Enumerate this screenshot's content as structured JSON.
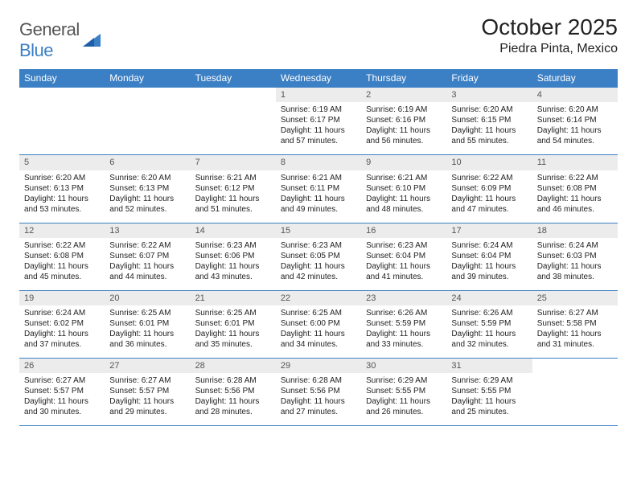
{
  "logo": {
    "text_a": "General",
    "text_b": "Blue"
  },
  "title": "October 2025",
  "location": "Piedra Pinta, Mexico",
  "colors": {
    "header_bg": "#3b7fc4",
    "header_text": "#ffffff",
    "daynum_bg": "#ececec",
    "daynum_text": "#555555",
    "rule": "#3b7fc4",
    "body_text": "#222222",
    "page_bg": "#ffffff"
  },
  "typography": {
    "title_fontsize": 28,
    "location_fontsize": 16,
    "dayhead_fontsize": 12,
    "daynum_fontsize": 11,
    "cell_fontsize": 10
  },
  "dayHeaders": [
    "Sunday",
    "Monday",
    "Tuesday",
    "Wednesday",
    "Thursday",
    "Friday",
    "Saturday"
  ],
  "weeks": [
    [
      {
        "n": "",
        "sr": "",
        "ss": "",
        "dl": ""
      },
      {
        "n": "",
        "sr": "",
        "ss": "",
        "dl": ""
      },
      {
        "n": "",
        "sr": "",
        "ss": "",
        "dl": ""
      },
      {
        "n": "1",
        "sr": "Sunrise: 6:19 AM",
        "ss": "Sunset: 6:17 PM",
        "dl": "Daylight: 11 hours and 57 minutes."
      },
      {
        "n": "2",
        "sr": "Sunrise: 6:19 AM",
        "ss": "Sunset: 6:16 PM",
        "dl": "Daylight: 11 hours and 56 minutes."
      },
      {
        "n": "3",
        "sr": "Sunrise: 6:20 AM",
        "ss": "Sunset: 6:15 PM",
        "dl": "Daylight: 11 hours and 55 minutes."
      },
      {
        "n": "4",
        "sr": "Sunrise: 6:20 AM",
        "ss": "Sunset: 6:14 PM",
        "dl": "Daylight: 11 hours and 54 minutes."
      }
    ],
    [
      {
        "n": "5",
        "sr": "Sunrise: 6:20 AM",
        "ss": "Sunset: 6:13 PM",
        "dl": "Daylight: 11 hours and 53 minutes."
      },
      {
        "n": "6",
        "sr": "Sunrise: 6:20 AM",
        "ss": "Sunset: 6:13 PM",
        "dl": "Daylight: 11 hours and 52 minutes."
      },
      {
        "n": "7",
        "sr": "Sunrise: 6:21 AM",
        "ss": "Sunset: 6:12 PM",
        "dl": "Daylight: 11 hours and 51 minutes."
      },
      {
        "n": "8",
        "sr": "Sunrise: 6:21 AM",
        "ss": "Sunset: 6:11 PM",
        "dl": "Daylight: 11 hours and 49 minutes."
      },
      {
        "n": "9",
        "sr": "Sunrise: 6:21 AM",
        "ss": "Sunset: 6:10 PM",
        "dl": "Daylight: 11 hours and 48 minutes."
      },
      {
        "n": "10",
        "sr": "Sunrise: 6:22 AM",
        "ss": "Sunset: 6:09 PM",
        "dl": "Daylight: 11 hours and 47 minutes."
      },
      {
        "n": "11",
        "sr": "Sunrise: 6:22 AM",
        "ss": "Sunset: 6:08 PM",
        "dl": "Daylight: 11 hours and 46 minutes."
      }
    ],
    [
      {
        "n": "12",
        "sr": "Sunrise: 6:22 AM",
        "ss": "Sunset: 6:08 PM",
        "dl": "Daylight: 11 hours and 45 minutes."
      },
      {
        "n": "13",
        "sr": "Sunrise: 6:22 AM",
        "ss": "Sunset: 6:07 PM",
        "dl": "Daylight: 11 hours and 44 minutes."
      },
      {
        "n": "14",
        "sr": "Sunrise: 6:23 AM",
        "ss": "Sunset: 6:06 PM",
        "dl": "Daylight: 11 hours and 43 minutes."
      },
      {
        "n": "15",
        "sr": "Sunrise: 6:23 AM",
        "ss": "Sunset: 6:05 PM",
        "dl": "Daylight: 11 hours and 42 minutes."
      },
      {
        "n": "16",
        "sr": "Sunrise: 6:23 AM",
        "ss": "Sunset: 6:04 PM",
        "dl": "Daylight: 11 hours and 41 minutes."
      },
      {
        "n": "17",
        "sr": "Sunrise: 6:24 AM",
        "ss": "Sunset: 6:04 PM",
        "dl": "Daylight: 11 hours and 39 minutes."
      },
      {
        "n": "18",
        "sr": "Sunrise: 6:24 AM",
        "ss": "Sunset: 6:03 PM",
        "dl": "Daylight: 11 hours and 38 minutes."
      }
    ],
    [
      {
        "n": "19",
        "sr": "Sunrise: 6:24 AM",
        "ss": "Sunset: 6:02 PM",
        "dl": "Daylight: 11 hours and 37 minutes."
      },
      {
        "n": "20",
        "sr": "Sunrise: 6:25 AM",
        "ss": "Sunset: 6:01 PM",
        "dl": "Daylight: 11 hours and 36 minutes."
      },
      {
        "n": "21",
        "sr": "Sunrise: 6:25 AM",
        "ss": "Sunset: 6:01 PM",
        "dl": "Daylight: 11 hours and 35 minutes."
      },
      {
        "n": "22",
        "sr": "Sunrise: 6:25 AM",
        "ss": "Sunset: 6:00 PM",
        "dl": "Daylight: 11 hours and 34 minutes."
      },
      {
        "n": "23",
        "sr": "Sunrise: 6:26 AM",
        "ss": "Sunset: 5:59 PM",
        "dl": "Daylight: 11 hours and 33 minutes."
      },
      {
        "n": "24",
        "sr": "Sunrise: 6:26 AM",
        "ss": "Sunset: 5:59 PM",
        "dl": "Daylight: 11 hours and 32 minutes."
      },
      {
        "n": "25",
        "sr": "Sunrise: 6:27 AM",
        "ss": "Sunset: 5:58 PM",
        "dl": "Daylight: 11 hours and 31 minutes."
      }
    ],
    [
      {
        "n": "26",
        "sr": "Sunrise: 6:27 AM",
        "ss": "Sunset: 5:57 PM",
        "dl": "Daylight: 11 hours and 30 minutes."
      },
      {
        "n": "27",
        "sr": "Sunrise: 6:27 AM",
        "ss": "Sunset: 5:57 PM",
        "dl": "Daylight: 11 hours and 29 minutes."
      },
      {
        "n": "28",
        "sr": "Sunrise: 6:28 AM",
        "ss": "Sunset: 5:56 PM",
        "dl": "Daylight: 11 hours and 28 minutes."
      },
      {
        "n": "29",
        "sr": "Sunrise: 6:28 AM",
        "ss": "Sunset: 5:56 PM",
        "dl": "Daylight: 11 hours and 27 minutes."
      },
      {
        "n": "30",
        "sr": "Sunrise: 6:29 AM",
        "ss": "Sunset: 5:55 PM",
        "dl": "Daylight: 11 hours and 26 minutes."
      },
      {
        "n": "31",
        "sr": "Sunrise: 6:29 AM",
        "ss": "Sunset: 5:55 PM",
        "dl": "Daylight: 11 hours and 25 minutes."
      },
      {
        "n": "",
        "sr": "",
        "ss": "",
        "dl": ""
      }
    ]
  ]
}
